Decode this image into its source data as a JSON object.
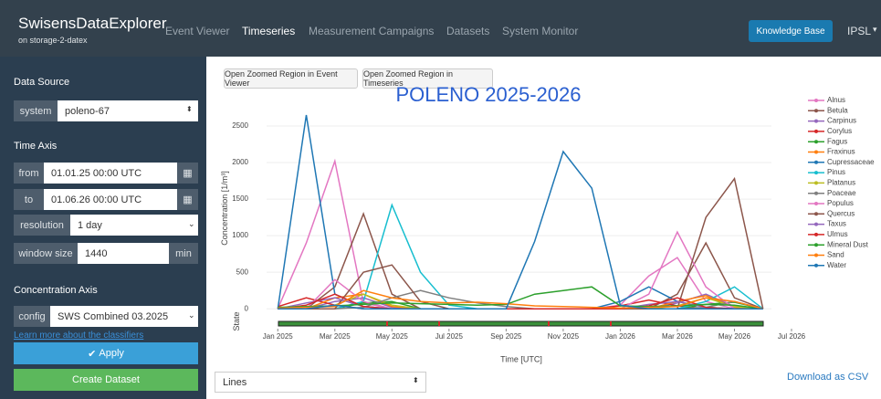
{
  "navbar": {
    "brand": "SwisensDataExplorer",
    "subtitle": "on storage-2-datex",
    "links": [
      "Event Viewer",
      "Timeseries",
      "Measurement Campaigns",
      "Datasets",
      "System Monitor"
    ],
    "button": "Knowledge Base",
    "user": "IPSL"
  },
  "sidebar": {
    "data_source": {
      "title": "Data Source",
      "label": "system",
      "value": "poleno-67"
    },
    "time_axis": {
      "title": "Time Axis",
      "from_label": "from",
      "from_value": "01.01.25 00:00 UTC",
      "to_label": "to",
      "to_value": "01.06.26 00:00 UTC",
      "resolution_label": "resolution",
      "resolution_value": "1 day",
      "window_label": "window size",
      "window_value": "1440",
      "window_unit": "min"
    },
    "concentration_axis": {
      "title": "Concentration Axis",
      "label": "config",
      "value": "SWS Combined 03.2025"
    },
    "link": "Learn more about the classifiers",
    "apply": "Apply",
    "create": "Create Dataset"
  },
  "toolbar": {
    "buttons": [
      "Open Zoomed Region in Event Viewer",
      "Open Zoomed Region in Timeseries"
    ]
  },
  "chart_data": {
    "type": "line",
    "title": "POLENO 2025-2026",
    "y_label": "Concentration [1/m³]",
    "x_label": "Time [UTC]",
    "state_label": "State",
    "x": [
      "2025-01",
      "2025-02",
      "2025-03",
      "2025-04",
      "2025-05",
      "2025-06",
      "2025-07",
      "2025-08",
      "2025-09",
      "2025-10",
      "2025-11",
      "2025-12",
      "2026-01",
      "2026-02",
      "2026-03",
      "2026-04",
      "2026-05",
      "2026-06"
    ],
    "xlim": [
      "2024-12",
      "2026-07"
    ],
    "xticks": [
      {
        "value": "2025-01",
        "label": "Jan 2025"
      },
      {
        "value": "2025-03",
        "label": "Mar 2025"
      },
      {
        "value": "2025-05",
        "label": "May 2025"
      },
      {
        "value": "2025-07",
        "label": "Jul 2025"
      },
      {
        "value": "2025-09",
        "label": "Sep 2025"
      },
      {
        "value": "2025-11",
        "label": "Nov 2025"
      },
      {
        "value": "2026-01",
        "label": "Jan 2026"
      },
      {
        "value": "2026-03",
        "label": "Mar 2026"
      },
      {
        "value": "2026-05",
        "label": "May 2026"
      },
      {
        "value": "2026-07",
        "label": "Jul 2026"
      }
    ],
    "ylim": [
      -60,
      2800
    ],
    "yticks": [
      0,
      500,
      1000,
      1500,
      2000,
      2500
    ],
    "grid": true,
    "series": [
      {
        "name": "Alnus",
        "color": "#e377c2",
        "values": [
          0,
          900,
          2020,
          80,
          0,
          0,
          0,
          0,
          0,
          0,
          0,
          0,
          50,
          450,
          700,
          100,
          0,
          0
        ]
      },
      {
        "name": "Betula",
        "color": "#8c564b",
        "values": [
          0,
          0,
          300,
          1300,
          200,
          0,
          0,
          0,
          0,
          0,
          0,
          0,
          0,
          0,
          200,
          900,
          150,
          0
        ]
      },
      {
        "name": "Carpinus",
        "color": "#9467bd",
        "values": [
          0,
          0,
          100,
          150,
          20,
          0,
          0,
          0,
          0,
          0,
          0,
          0,
          0,
          0,
          80,
          200,
          30,
          0
        ]
      },
      {
        "name": "Corylus",
        "color": "#d62728",
        "values": [
          30,
          150,
          50,
          0,
          0,
          0,
          0,
          0,
          0,
          0,
          0,
          0,
          40,
          120,
          40,
          0,
          0,
          0
        ]
      },
      {
        "name": "Fagus",
        "color": "#2ca02c",
        "values": [
          0,
          0,
          0,
          80,
          100,
          0,
          0,
          0,
          0,
          0,
          0,
          0,
          0,
          0,
          0,
          60,
          90,
          0
        ]
      },
      {
        "name": "Fraxinus",
        "color": "#ff7f0e",
        "values": [
          0,
          0,
          150,
          200,
          30,
          0,
          0,
          0,
          0,
          0,
          0,
          0,
          0,
          0,
          100,
          180,
          20,
          0
        ]
      },
      {
        "name": "Cupressaceae",
        "color": "#1f77b4",
        "values": [
          0,
          2650,
          200,
          30,
          0,
          0,
          0,
          0,
          0,
          0,
          0,
          0,
          100,
          300,
          100,
          20,
          0,
          0
        ]
      },
      {
        "name": "Pinus",
        "color": "#17becf",
        "values": [
          0,
          0,
          0,
          100,
          1420,
          500,
          50,
          0,
          0,
          0,
          0,
          0,
          0,
          0,
          0,
          100,
          300,
          0
        ]
      },
      {
        "name": "Platanus",
        "color": "#bcbd22",
        "values": [
          0,
          0,
          50,
          200,
          50,
          0,
          0,
          0,
          0,
          0,
          0,
          0,
          0,
          0,
          40,
          150,
          30,
          0
        ]
      },
      {
        "name": "Poaceae",
        "color": "#7f7f7f",
        "values": [
          0,
          0,
          0,
          20,
          150,
          250,
          150,
          80,
          30,
          0,
          0,
          0,
          0,
          0,
          0,
          20,
          100,
          0
        ]
      },
      {
        "name": "Populus",
        "color": "#e377c2",
        "values": [
          0,
          0,
          400,
          100,
          0,
          0,
          0,
          0,
          0,
          0,
          0,
          0,
          0,
          200,
          1050,
          300,
          0,
          0
        ]
      },
      {
        "name": "Quercus",
        "color": "#8c564b",
        "values": [
          0,
          0,
          0,
          500,
          600,
          100,
          0,
          0,
          0,
          0,
          0,
          0,
          0,
          0,
          0,
          1250,
          1780,
          0
        ]
      },
      {
        "name": "Taxus",
        "color": "#9467bd",
        "values": [
          0,
          80,
          150,
          30,
          0,
          0,
          0,
          0,
          0,
          0,
          0,
          0,
          0,
          60,
          100,
          20,
          0,
          0
        ]
      },
      {
        "name": "Ulmus",
        "color": "#d62728",
        "values": [
          0,
          50,
          200,
          30,
          0,
          0,
          0,
          0,
          0,
          0,
          0,
          0,
          0,
          40,
          150,
          20,
          0,
          0
        ]
      },
      {
        "name": "Mineral Dust",
        "color": "#2ca02c",
        "values": [
          20,
          30,
          40,
          60,
          80,
          70,
          60,
          50,
          60,
          200,
          250,
          300,
          40,
          30,
          40,
          60,
          50,
          0
        ]
      },
      {
        "name": "Sand",
        "color": "#ff7f0e",
        "values": [
          10,
          20,
          30,
          250,
          150,
          100,
          80,
          90,
          70,
          40,
          30,
          20,
          10,
          20,
          30,
          150,
          100,
          0
        ]
      },
      {
        "name": "Water",
        "color": "#1f77b4",
        "values": [
          0,
          0,
          50,
          0,
          0,
          0,
          0,
          0,
          0,
          920,
          2150,
          1650,
          50,
          0,
          0,
          0,
          0,
          0
        ]
      }
    ]
  },
  "footer": {
    "select": "Lines",
    "download": "Download as CSV"
  }
}
